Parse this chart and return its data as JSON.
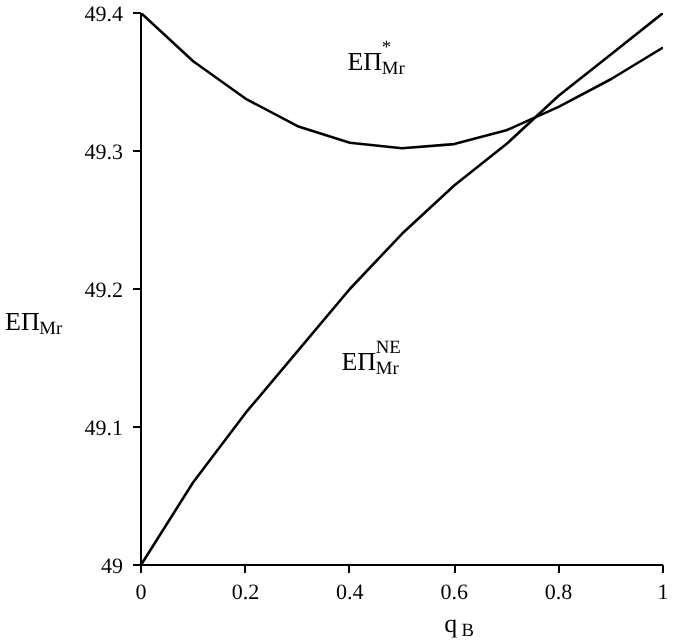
{
  "chart_data": {
    "type": "line",
    "xlabel": "q$_{B}$",
    "ylabel": "EΠ$_{Mr}$",
    "x": [
      0,
      0.1,
      0.2,
      0.3,
      0.4,
      0.5,
      0.6,
      0.7,
      0.8,
      0.9,
      1
    ],
    "series": [
      {
        "color": "#000000",
        "values": [
          49.4,
          49.365,
          49.338,
          49.318,
          49.306,
          49.302,
          49.305,
          49.315,
          49.332,
          49.352,
          49.375
        ]
      },
      {
        "color": "#000000",
        "values": [
          49.0,
          49.06,
          49.11,
          49.155,
          49.2,
          49.24,
          49.275,
          49.305,
          49.34,
          49.37,
          49.4
        ]
      }
    ],
    "annotations": [
      "EΠ$^{*}$$_{Mr}$",
      "EΠ$^{NE}$$_{Mr}$"
    ],
    "xlim": [
      0,
      1
    ],
    "ylim": [
      49,
      49.4
    ],
    "xticks": [
      0,
      0.2,
      0.4,
      0.6,
      0.8,
      1
    ],
    "yticks": [
      49,
      49.1,
      49.2,
      49.3,
      49.4
    ],
    "grid": false,
    "line_style": "solid",
    "marker": "none"
  }
}
